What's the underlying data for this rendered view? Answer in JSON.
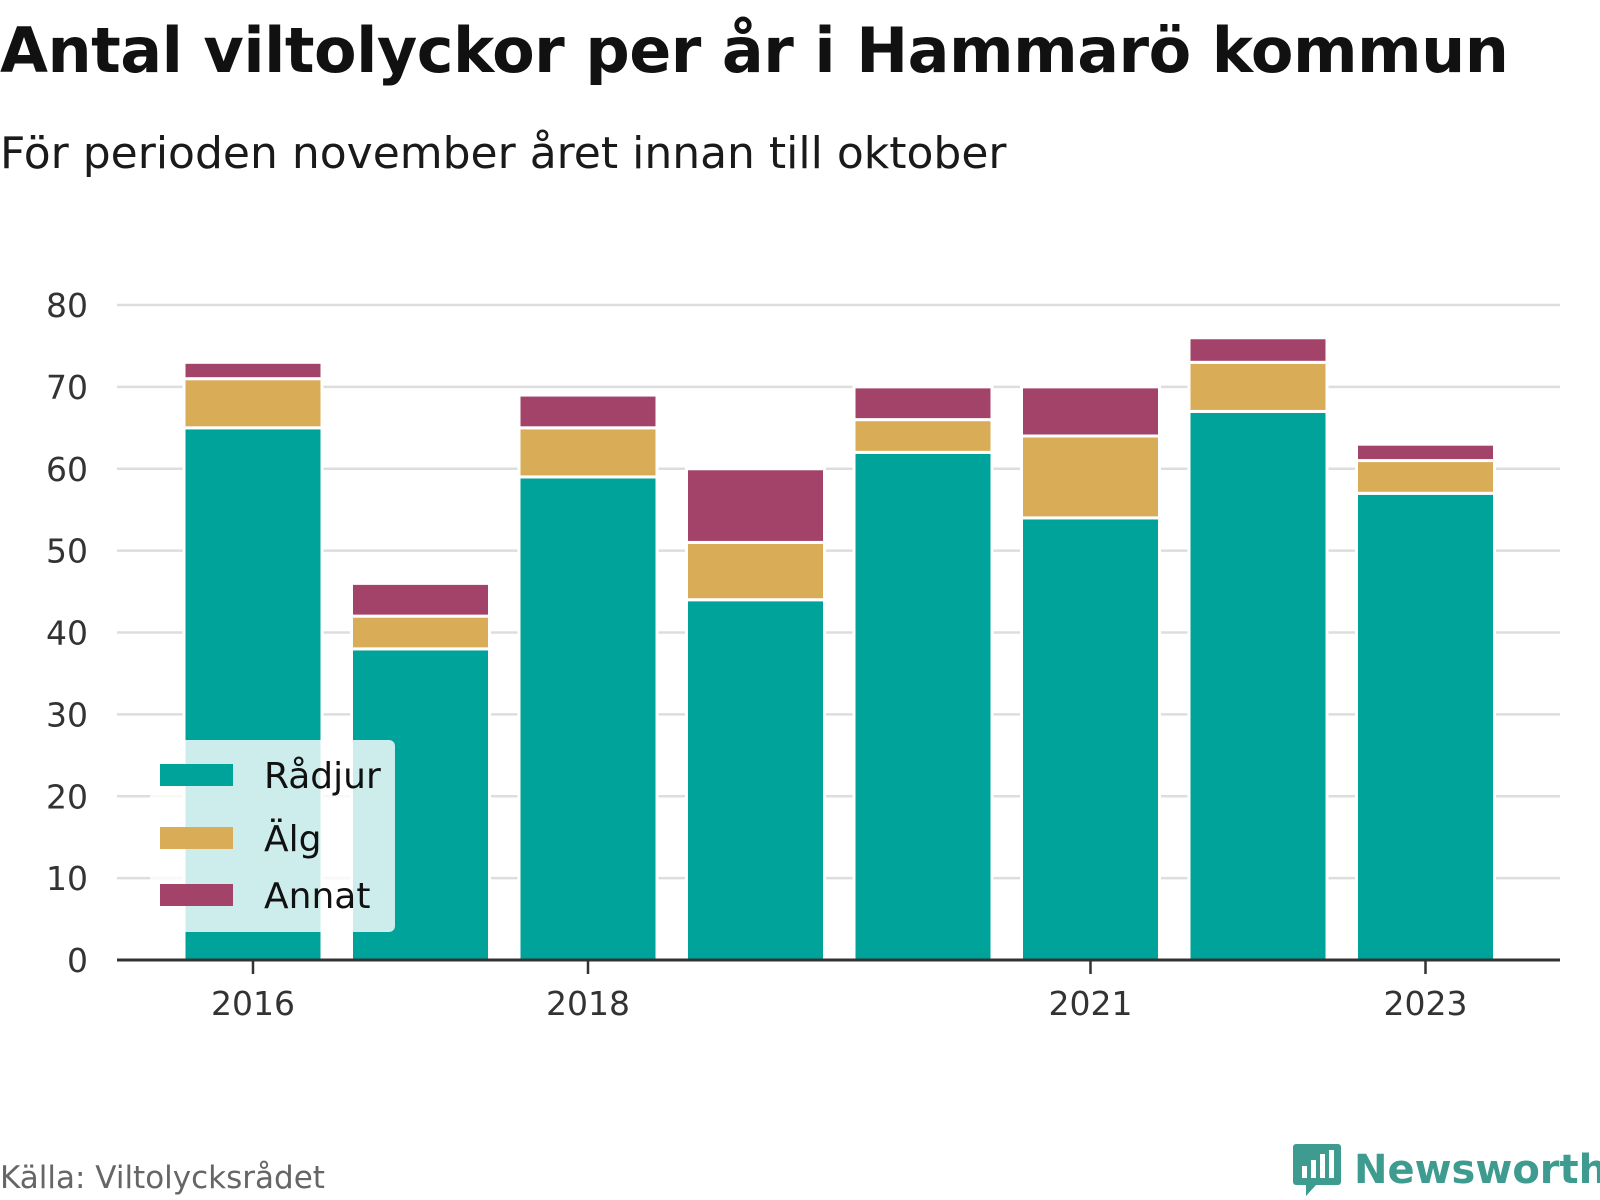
{
  "header": {
    "title": "Antal viltolyckor per år i Hammarö kommun",
    "subtitle": "För perioden november året innan till oktober"
  },
  "footer": {
    "source": "Källa: Viltolycksrådet",
    "brand": "Newsworthy"
  },
  "colors": {
    "radjur": "#00a39a",
    "alg": "#d9ad58",
    "annat": "#a4436a",
    "grid": "#dddddd",
    "axis": "#333333",
    "brand": "#3d9b8f"
  },
  "chart_data": {
    "type": "bar",
    "stacked": true,
    "x": [
      2016,
      2017,
      2018,
      2019,
      2020,
      2021,
      2022,
      2023
    ],
    "x_tick_labels": [
      "2016",
      "2018",
      "2021",
      "2023"
    ],
    "x_tick_values": [
      2016,
      2018,
      2021,
      2023
    ],
    "y_ticks": [
      0,
      10,
      20,
      30,
      40,
      50,
      60,
      70,
      80
    ],
    "ylim": [
      0,
      80
    ],
    "grid": true,
    "legend_position": "bottom-left",
    "series": [
      {
        "name": "Rådjur",
        "color": "#00a39a",
        "values": [
          65,
          38,
          59,
          44,
          62,
          54,
          67,
          57
        ]
      },
      {
        "name": "Älg",
        "color": "#d9ad58",
        "values": [
          6,
          4,
          6,
          7,
          4,
          10,
          6,
          4
        ]
      },
      {
        "name": "Annat",
        "color": "#a4436a",
        "values": [
          2,
          4,
          4,
          9,
          4,
          6,
          3,
          2
        ]
      }
    ]
  }
}
